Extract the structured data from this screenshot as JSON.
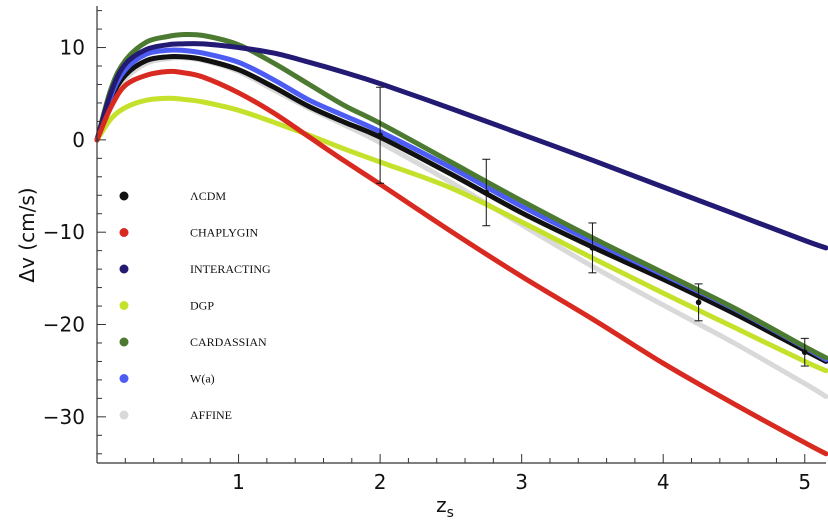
{
  "chart_data": {
    "type": "line",
    "xlabel": "z",
    "xlabel_sub": "s",
    "ylabel": "Δv (cm/s)",
    "xlim": [
      0,
      5.15
    ],
    "ylim": [
      -35,
      14.5
    ],
    "xticks": [
      1,
      2,
      3,
      4,
      5
    ],
    "yticks": [
      10,
      0,
      -10,
      -20,
      -30
    ],
    "xtick_labels": [
      "1",
      "2",
      "3",
      "4",
      "5"
    ],
    "ytick_labels": [
      "10",
      "0",
      "−10",
      "−20",
      "−30"
    ],
    "grid": false,
    "legend_position": "left-middle",
    "series": [
      {
        "name": "AFFINE",
        "color": "#d9d9d9",
        "x": [
          0,
          0.1,
          0.2,
          0.35,
          0.5,
          0.6,
          0.75,
          1.0,
          1.25,
          1.5,
          1.75,
          2.0,
          2.5,
          3.0,
          3.5,
          4.0,
          4.5,
          5.0,
          5.15
        ],
        "y": [
          0,
          4.2,
          6.6,
          8.3,
          8.8,
          8.9,
          8.6,
          7.4,
          5.4,
          3.4,
          1.6,
          -0.3,
          -4.6,
          -9.2,
          -13.7,
          -17.9,
          -22.0,
          -26.4,
          -27.8
        ]
      },
      {
        "name": "ΛCDM",
        "color": "#111111",
        "x": [
          0,
          0.1,
          0.2,
          0.35,
          0.5,
          0.6,
          0.75,
          1.0,
          1.25,
          1.5,
          1.75,
          2.0,
          2.5,
          3.0,
          3.5,
          4.0,
          4.5,
          5.0,
          5.15
        ],
        "y": [
          0,
          4.5,
          7.0,
          8.6,
          9.0,
          9.0,
          8.7,
          7.6,
          5.7,
          3.6,
          1.9,
          0.3,
          -3.7,
          -7.9,
          -11.6,
          -15.1,
          -18.8,
          -22.8,
          -24.0
        ]
      },
      {
        "name": "W(a)",
        "color": "#4d5cf2",
        "x": [
          0,
          0.1,
          0.2,
          0.35,
          0.5,
          0.6,
          0.75,
          1.0,
          1.25,
          1.5,
          1.75,
          2.0,
          2.5,
          3.0,
          3.5,
          4.0,
          4.5,
          5.0,
          5.15
        ],
        "y": [
          0,
          4.8,
          7.6,
          9.3,
          9.7,
          9.7,
          9.4,
          8.4,
          6.5,
          4.3,
          2.6,
          0.9,
          -3.0,
          -7.2,
          -11.0,
          -14.6,
          -18.3,
          -22.5,
          -23.8
        ]
      },
      {
        "name": "CARDASSIAN",
        "color": "#4c7a30",
        "x": [
          0,
          0.1,
          0.2,
          0.35,
          0.5,
          0.6,
          0.75,
          1.0,
          1.25,
          1.5,
          1.75,
          2.0,
          2.5,
          3.0,
          3.5,
          4.0,
          4.5,
          5.0,
          5.15
        ],
        "y": [
          0,
          5.6,
          8.6,
          10.6,
          11.2,
          11.4,
          11.3,
          10.3,
          8.3,
          6.0,
          3.7,
          1.8,
          -2.4,
          -6.6,
          -10.6,
          -14.4,
          -18.2,
          -22.4,
          -23.6
        ]
      },
      {
        "name": "INTERACTING",
        "color": "#231a73",
        "x": [
          0,
          0.1,
          0.2,
          0.35,
          0.5,
          0.6,
          0.75,
          1.0,
          1.25,
          1.5,
          1.75,
          2.0,
          2.5,
          3.0,
          3.5,
          4.0,
          4.5,
          5.0,
          5.15
        ],
        "y": [
          0,
          5.2,
          8.2,
          9.8,
          10.3,
          10.4,
          10.4,
          10.0,
          9.4,
          8.4,
          7.3,
          6.1,
          3.4,
          0.6,
          -2.2,
          -5.1,
          -8.0,
          -10.9,
          -11.7
        ]
      },
      {
        "name": "DGP",
        "color": "#c5e12b",
        "x": [
          0,
          0.1,
          0.2,
          0.35,
          0.5,
          0.6,
          0.75,
          1.0,
          1.25,
          1.5,
          1.75,
          2.0,
          2.5,
          3.0,
          3.5,
          4.0,
          4.5,
          5.0,
          5.15
        ],
        "y": [
          0,
          2.3,
          3.5,
          4.3,
          4.5,
          4.4,
          4.1,
          3.2,
          1.9,
          0.5,
          -1.0,
          -2.4,
          -5.2,
          -8.9,
          -12.8,
          -16.6,
          -20.3,
          -24.0,
          -25.0
        ]
      },
      {
        "name": "CHAPLYGIN",
        "color": "#d82a20",
        "x": [
          0,
          0.1,
          0.2,
          0.35,
          0.5,
          0.6,
          0.75,
          1.0,
          1.25,
          1.5,
          1.75,
          2.0,
          2.5,
          3.0,
          3.5,
          4.0,
          4.5,
          5.0,
          5.15
        ],
        "y": [
          0,
          3.6,
          5.9,
          7.0,
          7.4,
          7.3,
          6.8,
          5.1,
          2.9,
          0.3,
          -2.3,
          -4.8,
          -9.9,
          -14.8,
          -19.4,
          -24.2,
          -28.6,
          -32.8,
          -34.0
        ]
      }
    ],
    "error_bars": {
      "x": [
        2.0,
        2.75,
        3.5,
        4.25,
        5.0
      ],
      "y": [
        0.5,
        -5.7,
        -11.7,
        -17.6,
        -23.0
      ],
      "yerr": [
        5.2,
        3.6,
        2.7,
        2.0,
        1.5
      ]
    },
    "legend_order": [
      "ΛCDM",
      "CHAPLYGIN",
      "INTERACTING",
      "DGP",
      "CARDASSIAN",
      "W(a)",
      "AFFINE"
    ]
  }
}
